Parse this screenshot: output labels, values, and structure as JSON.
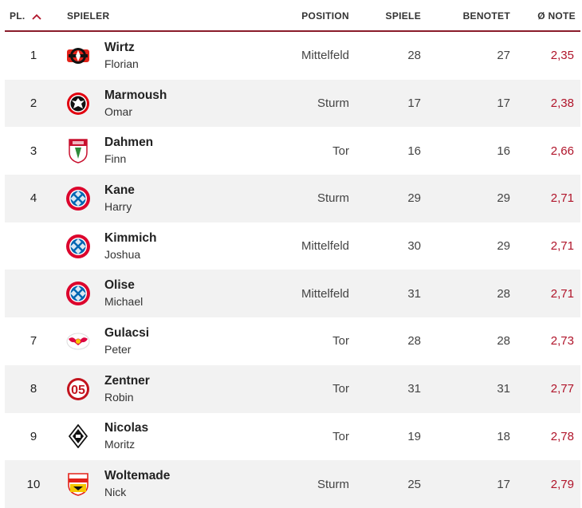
{
  "header": {
    "rank": "PL.",
    "player": "SPIELER",
    "position": "POSITION",
    "games": "SPIELE",
    "rated": "BENOTET",
    "avg": "Ø NOTE"
  },
  "colors": {
    "accent": "#8a1c2b",
    "grade": "#b0142a",
    "alt_row": "#f2f2f2"
  },
  "rows": [
    {
      "rank": "1",
      "last": "Wirtz",
      "first": "Florian",
      "club_icon": "leverkusen-crest-icon",
      "position": "Mittelfeld",
      "games": "28",
      "rated": "27",
      "avg": "2,35"
    },
    {
      "rank": "2",
      "last": "Marmoush",
      "first": "Omar",
      "club_icon": "frankfurt-eagle-icon",
      "position": "Sturm",
      "games": "17",
      "rated": "17",
      "avg": "2,38"
    },
    {
      "rank": "3",
      "last": "Dahmen",
      "first": "Finn",
      "club_icon": "augsburg-crest-icon",
      "position": "Tor",
      "games": "16",
      "rated": "16",
      "avg": "2,66"
    },
    {
      "rank": "4",
      "last": "Kane",
      "first": "Harry",
      "club_icon": "bayern-crest-icon",
      "position": "Sturm",
      "games": "29",
      "rated": "29",
      "avg": "2,71"
    },
    {
      "rank": "",
      "last": "Kimmich",
      "first": "Joshua",
      "club_icon": "bayern-crest-icon",
      "position": "Mittelfeld",
      "games": "30",
      "rated": "29",
      "avg": "2,71"
    },
    {
      "rank": "",
      "last": "Olise",
      "first": "Michael",
      "club_icon": "bayern-crest-icon",
      "position": "Mittelfeld",
      "games": "31",
      "rated": "28",
      "avg": "2,71"
    },
    {
      "rank": "7",
      "last": "Gulacsi",
      "first": "Peter",
      "club_icon": "leipzig-bull-icon",
      "position": "Tor",
      "games": "28",
      "rated": "28",
      "avg": "2,73"
    },
    {
      "rank": "8",
      "last": "Zentner",
      "first": "Robin",
      "club_icon": "mainz-crest-icon",
      "position": "Tor",
      "games": "31",
      "rated": "31",
      "avg": "2,77"
    },
    {
      "rank": "9",
      "last": "Nicolas",
      "first": "Moritz",
      "club_icon": "gladbach-crest-icon",
      "position": "Tor",
      "games": "19",
      "rated": "18",
      "avg": "2,78"
    },
    {
      "rank": "10",
      "last": "Woltemade",
      "first": "Nick",
      "club_icon": "stuttgart-crest-icon",
      "position": "Sturm",
      "games": "25",
      "rated": "17",
      "avg": "2,79"
    }
  ]
}
